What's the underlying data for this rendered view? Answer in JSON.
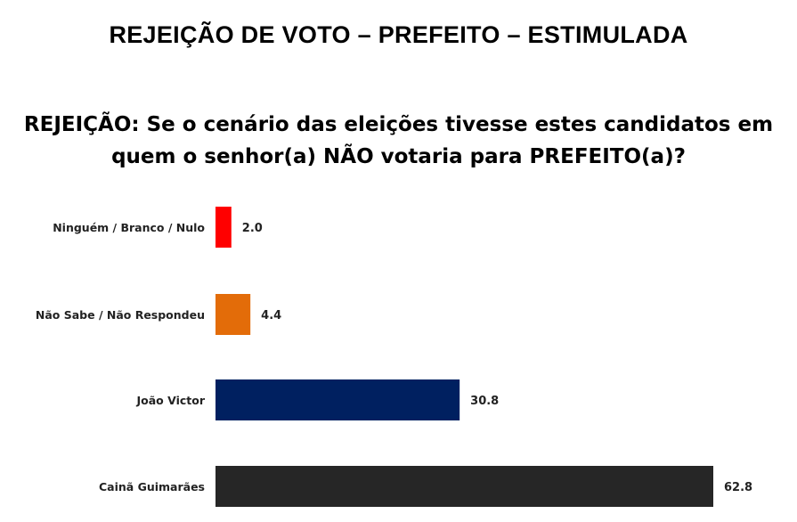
{
  "header": {
    "title": "REJEIÇÃO DE VOTO – PREFEITO – ESTIMULADA",
    "question_line1": "REJEIÇÃO: Se o cenário das eleições tivesse estes candidatos em",
    "question_line2": "quem o senhor(a) NÃO votaria para PREFEITO(a)?"
  },
  "chart_data": {
    "type": "bar",
    "orientation": "horizontal",
    "categories": [
      "Ninguém / Branco / Nulo",
      "Não Sabe / Não Respondeu",
      "João Victor",
      "Cainã Guimarães"
    ],
    "values": [
      2.0,
      4.4,
      30.8,
      62.8
    ],
    "value_labels": [
      "2.0",
      "4.4",
      "30.8",
      "62.8"
    ],
    "colors": [
      "#ff0000",
      "#e36c09",
      "#002060",
      "#262626"
    ],
    "xlabel": "",
    "ylabel": "",
    "xlim": [
      0,
      62.8
    ],
    "grid": false
  }
}
